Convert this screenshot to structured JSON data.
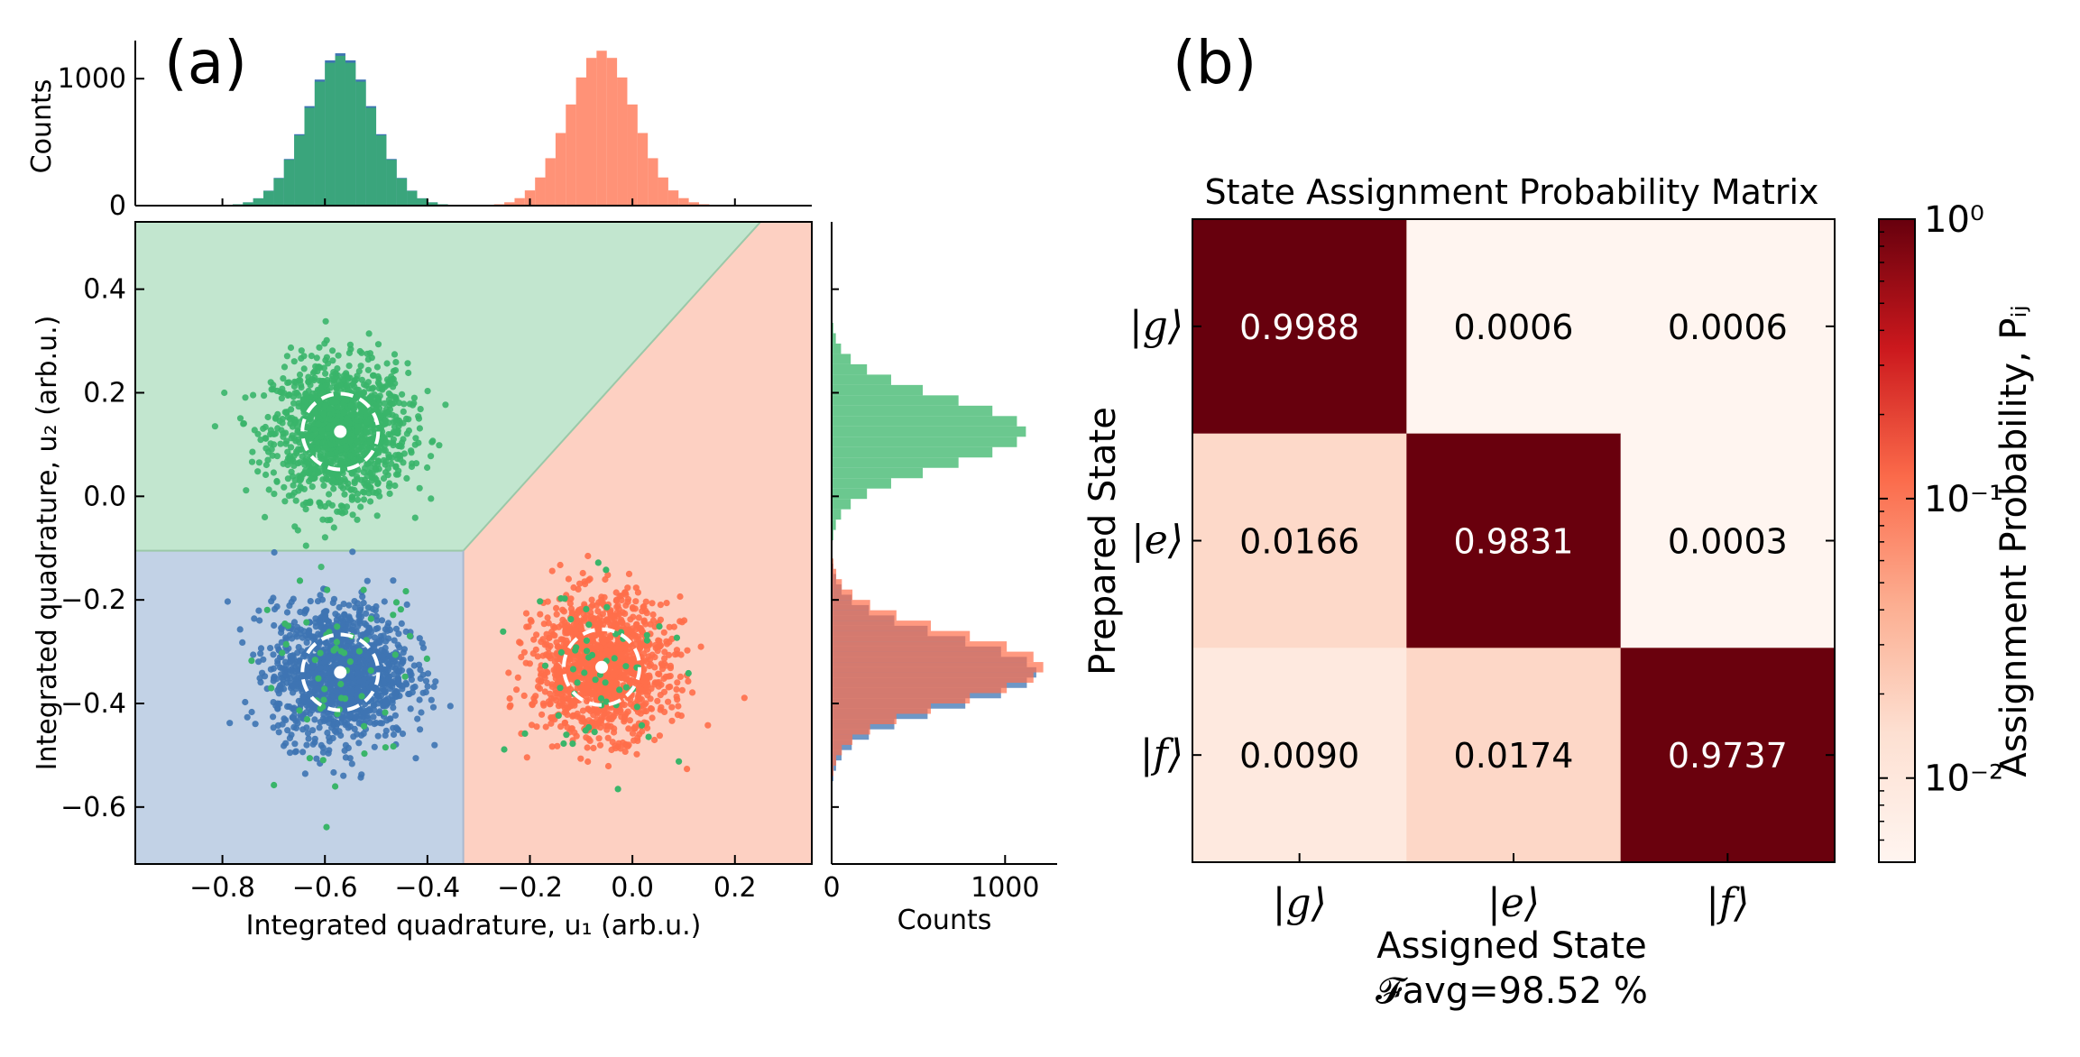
{
  "panel_a_label": "(a)",
  "panel_b_label": "(b)",
  "chart_data": [
    {
      "type": "scatter",
      "xlabel": "Integrated quadrature, u₁ (arb.u.)",
      "ylabel": "Integrated quadrature, u₂ (arb.u.)",
      "xlim": [
        -0.97,
        0.35
      ],
      "ylim": [
        -0.71,
        0.53
      ],
      "xticks": [
        -0.8,
        -0.6,
        -0.4,
        -0.2,
        0.0,
        0.2
      ],
      "xtick_labels": [
        "−0.8",
        "−0.6",
        "−0.4",
        "−0.2",
        "0.0",
        "0.2"
      ],
      "yticks": [
        -0.6,
        -0.4,
        -0.2,
        0.0,
        0.2,
        0.4
      ],
      "ytick_labels": [
        "−0.6",
        "−0.4",
        "−0.2",
        "0.0",
        "0.2",
        "0.4"
      ],
      "series": [
        {
          "color": "#3ab56a",
          "center": [
            -0.57,
            0.125
          ],
          "std": 0.065
        },
        {
          "color": "#3e74b3",
          "center": [
            -0.57,
            -0.34
          ],
          "std": 0.065
        },
        {
          "color": "#ff6e4a",
          "center": [
            -0.06,
            -0.33
          ],
          "std": 0.065
        }
      ],
      "regions": {
        "g_color": "#c2e6cf",
        "e_color": "#c2d2e6",
        "f_color": "#fdd0c2",
        "boundary_polyline": [
          [
            -0.97,
            -0.105
          ],
          [
            -0.33,
            -0.105
          ],
          [
            0.25,
            0.53
          ]
        ],
        "vertical_boundary_x": -0.33
      },
      "grid": false
    },
    {
      "type": "histogram",
      "orientation": "vertical",
      "ylabel": "Counts",
      "yticks": [
        0,
        1000
      ],
      "ytick_labels": [
        "0",
        "1000"
      ],
      "ylim": [
        0,
        1300
      ],
      "bin_width": 0.02,
      "series": [
        {
          "color": "#3e74b3",
          "center": -0.57,
          "peak": 1200
        },
        {
          "color": "#3ab56a",
          "center": -0.57,
          "peak": 1180
        },
        {
          "color": "#ff6e4a",
          "center": -0.06,
          "peak": 1220
        }
      ]
    },
    {
      "type": "histogram",
      "orientation": "horizontal",
      "xlabel": "Counts",
      "xticks": [
        0,
        1000
      ],
      "xtick_labels": [
        "0",
        "1000"
      ],
      "xlim": [
        0,
        1300
      ],
      "bin_width": 0.02,
      "series": [
        {
          "color": "#3ab56a",
          "center": 0.125,
          "peak": 1120
        },
        {
          "color": "#3e74b3",
          "center": -0.34,
          "peak": 1180
        },
        {
          "color": "#ff6e4a",
          "center": -0.33,
          "peak": 1220
        }
      ]
    },
    {
      "type": "heatmap",
      "title": "State Assignment Probability Matrix",
      "xlabel": "Assigned State",
      "ylabel": "Prepared State",
      "row_labels": [
        "|g⟩",
        "|e⟩",
        "|f⟩"
      ],
      "col_labels": [
        "|g⟩",
        "|e⟩",
        "|f⟩"
      ],
      "values": [
        [
          0.9988,
          0.0006,
          0.0006
        ],
        [
          0.0166,
          0.9831,
          0.0003
        ],
        [
          0.009,
          0.0174,
          0.9737
        ]
      ],
      "value_labels": [
        [
          "0.9988",
          "0.0006",
          "0.0006"
        ],
        [
          "0.0166",
          "0.9831",
          "0.0003"
        ],
        [
          "0.0090",
          "0.0174",
          "0.9737"
        ]
      ],
      "colorbar": {
        "label": "Assignment Probability, Pᵢⱼ",
        "scale": "log",
        "ticks": [
          0.01,
          0.1,
          1.0
        ],
        "tick_labels": [
          "10⁻²",
          "10⁻¹",
          "10⁰"
        ],
        "vmin": 0.005,
        "vmax": 1.0
      },
      "fidelity_label": "𝓕avg=98.52 %"
    }
  ]
}
